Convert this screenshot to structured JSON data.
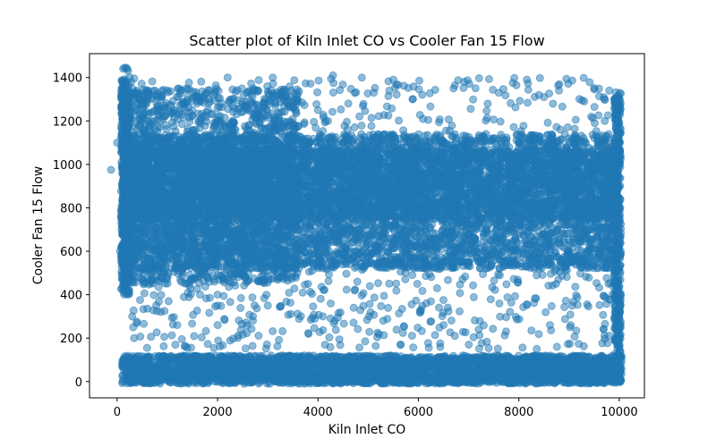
{
  "chart_data": {
    "type": "scatter",
    "title": "Scatter plot of Kiln Inlet CO vs Cooler Fan 15 Flow",
    "xlabel": "Kiln Inlet CO",
    "ylabel": "Cooler Fan 15 Flow",
    "xlim": [
      -550,
      10500
    ],
    "ylim": [
      -75,
      1510
    ],
    "xticks": [
      0,
      2000,
      4000,
      6000,
      8000,
      10000
    ],
    "yticks": [
      0,
      200,
      400,
      600,
      800,
      1000,
      1200,
      1400
    ],
    "grid": false,
    "legend": "none",
    "marker_color": "#1f77b4",
    "marker_alpha": 0.5,
    "series": [
      {
        "x": [
          0,
          -120,
          60,
          120,
          150,
          180,
          200,
          220,
          250,
          280,
          300,
          320,
          350,
          400,
          450,
          500,
          600,
          700,
          800,
          900,
          1000,
          1200,
          1400,
          1600,
          1800,
          2000,
          2200,
          2500,
          2800,
          3000,
          3200,
          3500,
          3800,
          4000,
          4200,
          4500,
          4800,
          5000,
          5200,
          5500,
          5800,
          6000,
          6300,
          6600,
          7000,
          7300,
          7600,
          8000,
          8300,
          8600,
          9000,
          9300,
          9600,
          9800,
          9900,
          9950,
          10000,
          10020,
          200,
          250,
          300,
          350,
          500,
          1000,
          1500,
          2000,
          3000,
          4000,
          5000,
          6000,
          7000,
          8000,
          9000,
          9500,
          10000,
          300,
          320,
          340,
          2000,
          3000,
          4100,
          5300,
          6500,
          7200,
          8500,
          8800,
          9700,
          2200,
          3100,
          4300,
          5500,
          6700,
          7600,
          8400,
          9300
        ],
        "y": [
          1100,
          975,
          600,
          1440,
          1445,
          1445,
          1440,
          1430,
          1400,
          1380,
          1350,
          1330,
          1300,
          1250,
          1300,
          1280,
          1240,
          1200,
          1150,
          1100,
          1050,
          1000,
          950,
          900,
          850,
          800,
          750,
          700,
          650,
          600,
          550,
          500,
          450,
          1250,
          1200,
          1100,
          1000,
          900,
          850,
          800,
          750,
          700,
          650,
          600,
          550,
          1050,
          1000,
          950,
          900,
          880,
          860,
          840,
          820,
          1340,
          1300,
          1200,
          1000,
          800,
          50,
          40,
          30,
          20,
          60,
          50,
          40,
          30,
          60,
          50,
          40,
          30,
          50,
          40,
          30,
          50,
          40,
          300,
          250,
          200,
          400,
          350,
          300,
          280,
          260,
          240,
          1310,
          1340,
          1300,
          1400,
          1400,
          1410,
          1390,
          1350,
          1330,
          1320,
          1290
        ],
        "note_density": "dense band y 500-1150 across x 100-10000; dense band y 0-150 across x 100-10000; sparse scatter y 150-500"
      }
    ]
  }
}
